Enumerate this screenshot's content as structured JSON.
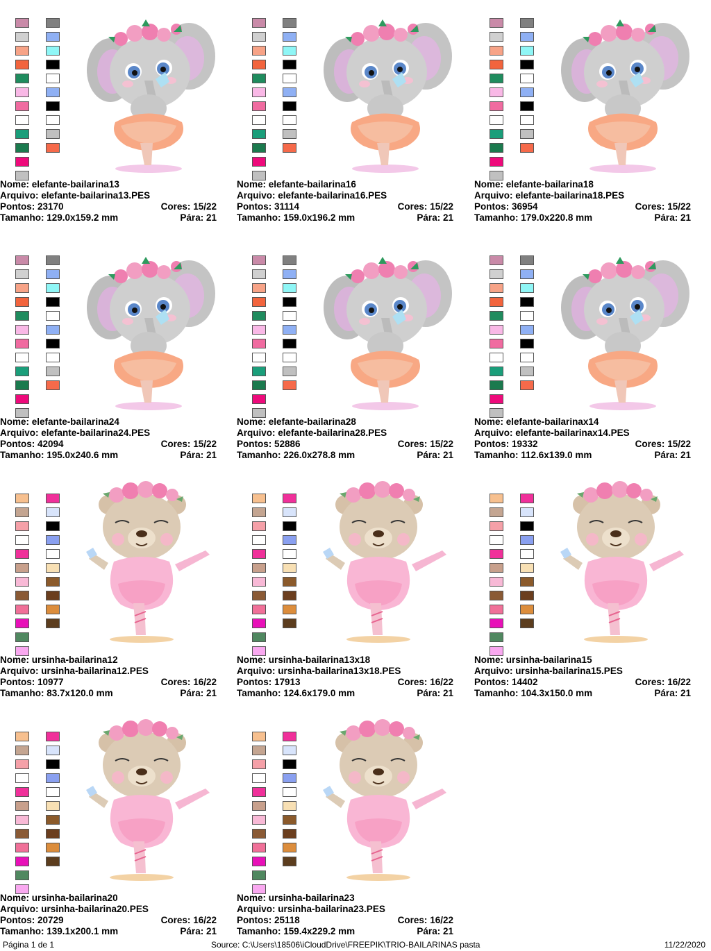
{
  "palettes": {
    "elefante": {
      "col1": [
        "#c98aa8",
        "#d0d0d0",
        "#f7a387",
        "#f2643d",
        "#1f8c5e",
        "#f9b8e6",
        "#f06ba0",
        "#ffffff",
        "#1a9e7a",
        "#1b7a4e",
        "#ee0a7b",
        "#c0c0c0"
      ],
      "col2": [
        "#808080",
        "#8fb0f4",
        "#8ff6f6",
        "#000000",
        "#ffffff",
        "#8fb0f4",
        "#000000",
        "#ffffff",
        "#c0c0c0",
        "#f66a4a"
      ]
    },
    "ursinha": {
      "col1": [
        "#f7c08f",
        "#c4a591",
        "#f5a0a8",
        "#ffffff",
        "#f0309a",
        "#c8a08c",
        "#f8b9d6",
        "#8a5a35",
        "#f07098",
        "#e810b8",
        "#508860",
        "#f9a8f0"
      ],
      "col2": [
        "#f0309a",
        "#d8e4fb",
        "#000000",
        "#8aa0f0",
        "#ffffff",
        "#f8e0b4",
        "#8b5a2b",
        "#6b3e1e",
        "#dc8d3c",
        "#5c3d1e"
      ]
    }
  },
  "labels": {
    "nome": "Nome:",
    "arquivo": "Arquivo:",
    "pontos": "Pontos:",
    "cores": "Cores:",
    "tamanho": "Tamanho:",
    "para": "Pára:"
  },
  "designs": [
    {
      "kind": "elefante",
      "nome": "elefante-bailarina13",
      "arquivo": "elefante-bailarina13.PES",
      "pontos": "23170",
      "cores": "15/22",
      "tamanho": "129.0x159.2 mm",
      "para": "21"
    },
    {
      "kind": "elefante",
      "nome": "elefante-bailarina16",
      "arquivo": "elefante-bailarina16.PES",
      "pontos": "31114",
      "cores": "15/22",
      "tamanho": "159.0x196.2 mm",
      "para": "21"
    },
    {
      "kind": "elefante",
      "nome": "elefante-bailarina18",
      "arquivo": "elefante-bailarina18.PES",
      "pontos": "36954",
      "cores": "15/22",
      "tamanho": "179.0x220.8 mm",
      "para": "21"
    },
    {
      "kind": "elefante",
      "nome": "elefante-bailarina24",
      "arquivo": "elefante-bailarina24.PES",
      "pontos": "42094",
      "cores": "15/22",
      "tamanho": "195.0x240.6 mm",
      "para": "21"
    },
    {
      "kind": "elefante",
      "nome": "elefante-bailarina28",
      "arquivo": "elefante-bailarina28.PES",
      "pontos": "52886",
      "cores": "15/22",
      "tamanho": "226.0x278.8 mm",
      "para": "21"
    },
    {
      "kind": "elefante",
      "nome": "elefante-bailarinax14",
      "arquivo": "elefante-bailarinax14.PES",
      "pontos": "19332",
      "cores": "15/22",
      "tamanho": "112.6x139.0 mm",
      "para": "21"
    },
    {
      "kind": "ursinha",
      "nome": "ursinha-bailarina12",
      "arquivo": "ursinha-bailarina12.PES",
      "pontos": "10977",
      "cores": "16/22",
      "tamanho": "83.7x120.0 mm",
      "para": "21"
    },
    {
      "kind": "ursinha",
      "nome": "ursinha-bailarina13x18",
      "arquivo": "ursinha-bailarina13x18.PES",
      "pontos": "17913",
      "cores": "16/22",
      "tamanho": "124.6x179.0 mm",
      "para": "21"
    },
    {
      "kind": "ursinha",
      "nome": "ursinha-bailarina15",
      "arquivo": "ursinha-bailarina15.PES",
      "pontos": "14402",
      "cores": "16/22",
      "tamanho": "104.3x150.0 mm",
      "para": "21"
    },
    {
      "kind": "ursinha",
      "nome": "ursinha-bailarina20",
      "arquivo": "ursinha-bailarina20.PES",
      "pontos": "20729",
      "cores": "16/22",
      "tamanho": "139.1x200.1 mm",
      "para": "21"
    },
    {
      "kind": "ursinha",
      "nome": "ursinha-bailarina23",
      "arquivo": "ursinha-bailarina23.PES",
      "pontos": "25118",
      "cores": "16/22",
      "tamanho": "159.4x229.2 mm",
      "para": "21"
    }
  ],
  "footer": {
    "page": "Página 1 de 1",
    "source": "Source:  C:\\Users\\18506\\iCloudDrive\\FREEPIK\\TRIO-BAILARINAS pasta",
    "date": "11/22/2020"
  }
}
